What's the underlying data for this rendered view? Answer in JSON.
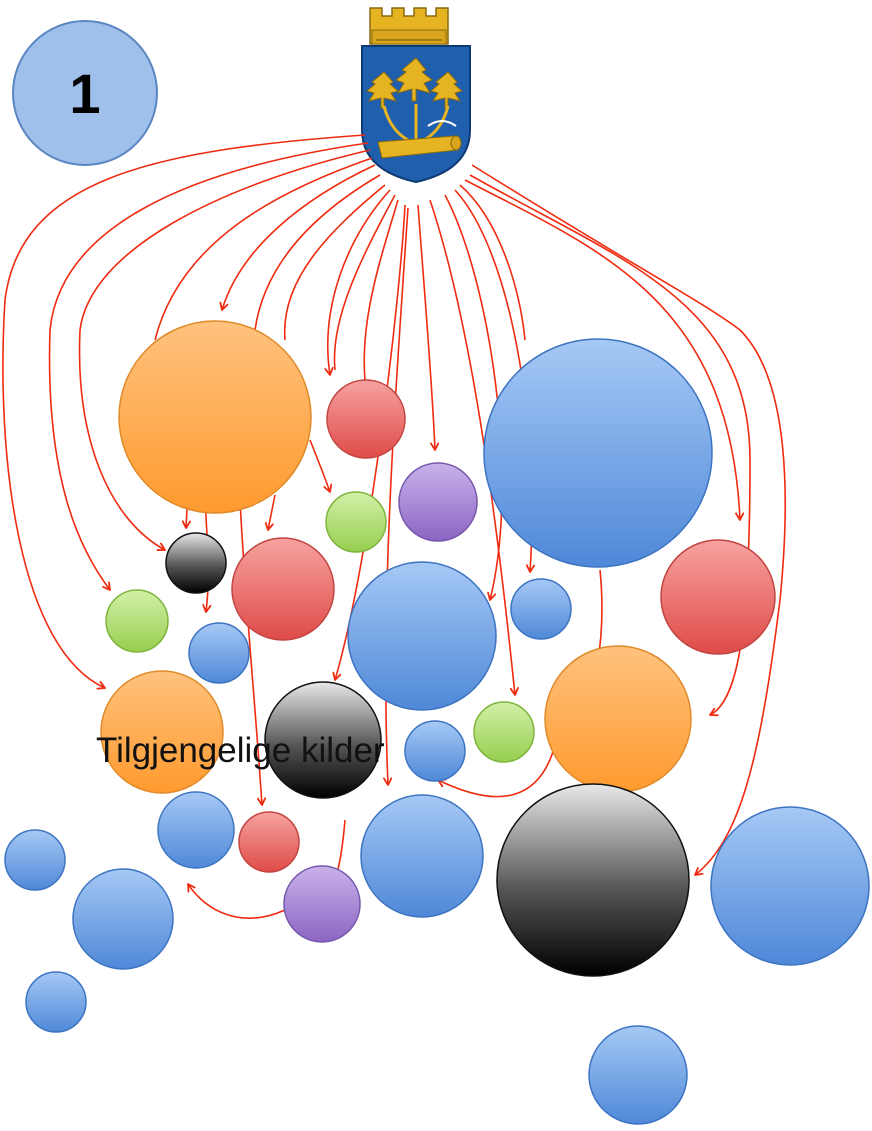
{
  "badge": {
    "number": "1"
  },
  "caption": {
    "text": "Tilgjengelige kilder"
  },
  "emblem": {
    "name": "coat-of-arms",
    "colors": {
      "shield": "#1f5fae",
      "gold": "#e6b422"
    }
  },
  "palette": {
    "arrow": "#ef2b10",
    "blue": "#6fa3e6",
    "orange": "#ffa23d",
    "red": "#e9605c",
    "green": "#a9db66",
    "purple": "#a07fd0",
    "black": "#222222"
  },
  "sources": [
    "orange-large",
    "red",
    "purple",
    "blue-large",
    "green",
    "black-small",
    "red",
    "red",
    "blue-center",
    "blue",
    "green",
    "blue",
    "orange",
    "black",
    "blue",
    "green",
    "orange",
    "blue",
    "red",
    "blue",
    "purple",
    "black-large",
    "blue-large",
    "blue",
    "blue",
    "blue",
    "blue"
  ]
}
